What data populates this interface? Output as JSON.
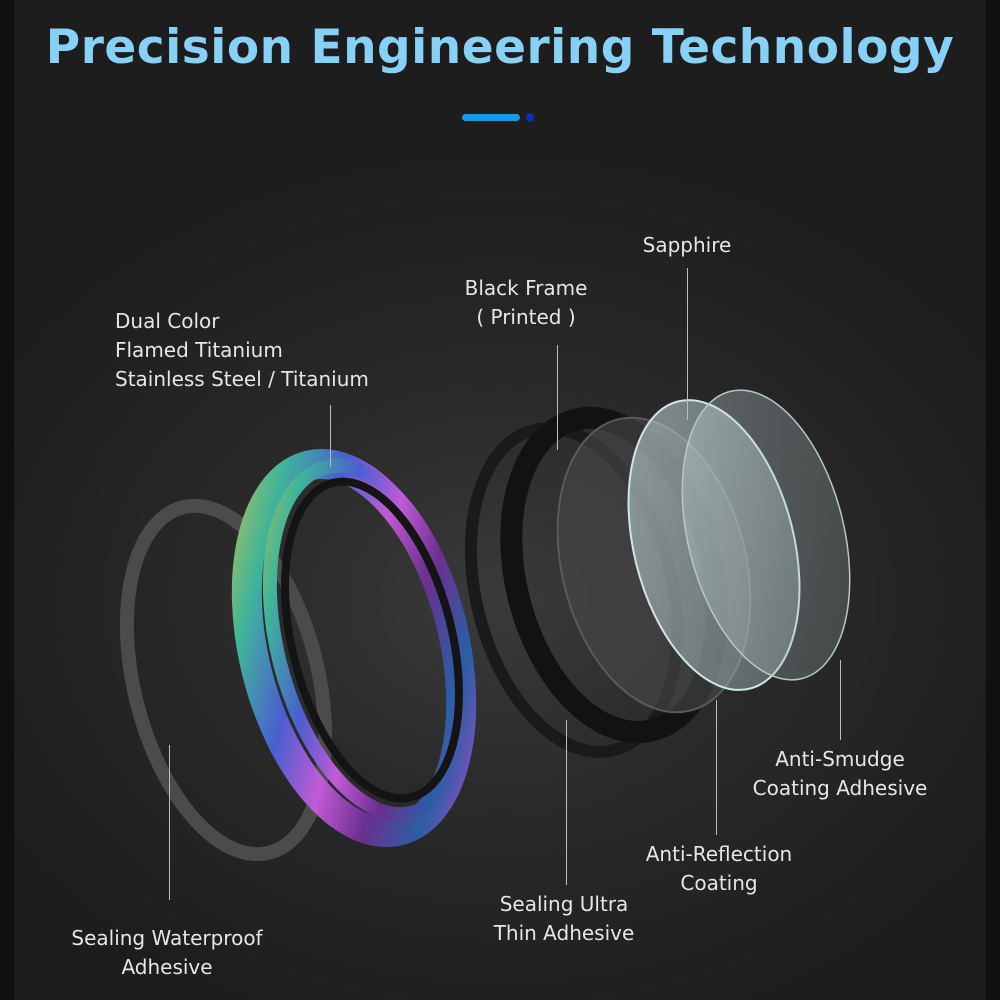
{
  "title": "Precision Engineering Technology",
  "accent_colors": {
    "title": "#86d1f5",
    "dash": "#149ae6",
    "dot": "#0a2fb8"
  },
  "labels": {
    "ring": [
      "Dual Color",
      "Flamed Titanium",
      "Stainless Steel / Titanium"
    ],
    "black_frame": [
      "Black Frame",
      "( Printed )"
    ],
    "sapphire": [
      "Sapphire"
    ],
    "anti_smudge": [
      "Anti-Smudge",
      "Coating Adhesive"
    ],
    "anti_reflection": [
      "Anti-Reflection",
      "Coating"
    ],
    "sealing_ultra": [
      "Sealing Ultra",
      "Thin Adhesive"
    ],
    "sealing_waterproof": [
      "Sealing Waterproof",
      "Adhesive"
    ]
  }
}
